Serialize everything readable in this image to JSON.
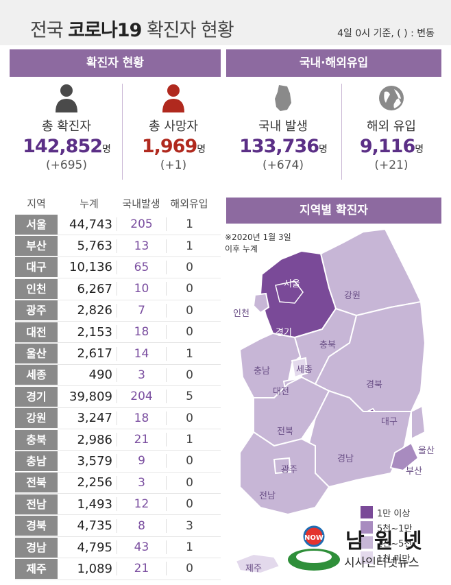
{
  "header": {
    "title_pre": "전국 ",
    "title_bold": "코로나19",
    "title_post": " 확진자 현황",
    "subtitle": "4일 0시 기준, ( ) : 변동"
  },
  "status_panel": {
    "title": "확진자 현황",
    "total": {
      "label": "총 확진자",
      "value": "142,852",
      "unit": "명",
      "change": "(+695)"
    },
    "deaths": {
      "label": "총 사망자",
      "value": "1,969",
      "unit": "명",
      "change": "(+1)"
    }
  },
  "origin_panel": {
    "title": "국내·해외유입",
    "domestic": {
      "label": "국내 발생",
      "value": "133,736",
      "unit": "명",
      "change": "(+674)"
    },
    "overseas": {
      "label": "해외 유입",
      "value": "9,116",
      "unit": "명",
      "change": "(+21)"
    }
  },
  "table": {
    "headers": [
      "지역",
      "누계",
      "국내발생",
      "해외유입"
    ],
    "rows": [
      {
        "region": "서울",
        "total": "44,743",
        "domestic": "205",
        "overseas": "1"
      },
      {
        "region": "부산",
        "total": "5,763",
        "domestic": "13",
        "overseas": "1"
      },
      {
        "region": "대구",
        "total": "10,136",
        "domestic": "65",
        "overseas": "0"
      },
      {
        "region": "인천",
        "total": "6,267",
        "domestic": "10",
        "overseas": "0"
      },
      {
        "region": "광주",
        "total": "2,826",
        "domestic": "7",
        "overseas": "0"
      },
      {
        "region": "대전",
        "total": "2,153",
        "domestic": "18",
        "overseas": "0"
      },
      {
        "region": "울산",
        "total": "2,617",
        "domestic": "14",
        "overseas": "1"
      },
      {
        "region": "세종",
        "total": "490",
        "domestic": "3",
        "overseas": "0"
      },
      {
        "region": "경기",
        "total": "39,809",
        "domestic": "204",
        "overseas": "5"
      },
      {
        "region": "강원",
        "total": "3,247",
        "domestic": "18",
        "overseas": "0"
      },
      {
        "region": "충북",
        "total": "2,986",
        "domestic": "21",
        "overseas": "1"
      },
      {
        "region": "충남",
        "total": "3,579",
        "domestic": "9",
        "overseas": "0"
      },
      {
        "region": "전북",
        "total": "2,256",
        "domestic": "3",
        "overseas": "0"
      },
      {
        "region": "전남",
        "total": "1,493",
        "domestic": "12",
        "overseas": "0"
      },
      {
        "region": "경북",
        "total": "4,735",
        "domestic": "8",
        "overseas": "3"
      },
      {
        "region": "경남",
        "total": "4,795",
        "domestic": "43",
        "overseas": "1"
      },
      {
        "region": "제주",
        "total": "1,089",
        "domestic": "21",
        "overseas": "0"
      }
    ]
  },
  "map": {
    "title": "지역별 확진자",
    "note_line1": "※2020년 1월 3일",
    "note_line2": "이후 누계",
    "labels": {
      "seoul": "서울",
      "gyeonggi": "경기",
      "incheon": "인천",
      "gangwon": "강원",
      "chungbuk": "충북",
      "sejong": "세종",
      "chungnam": "충남",
      "daejeon": "대전",
      "gyeongbuk": "경북",
      "daegu": "대구",
      "jeonbuk": "전북",
      "ulsan": "울산",
      "gwangju": "광주",
      "gyeongnam": "경남",
      "busan": "부산",
      "jeonnam": "전남",
      "jeju": "제주"
    },
    "legend": [
      {
        "label": "1만 이상",
        "color": "#7a4a98"
      },
      {
        "label": "5천~1만",
        "color": "#a88bbf"
      },
      {
        "label": "1천~5천",
        "color": "#c7b6d6"
      },
      {
        "label": "1천 미만",
        "color": "#e3d9ec"
      }
    ]
  },
  "watermark": {
    "brand": "남 원 넷",
    "sub": "시사인터넷뉴스"
  },
  "colors": {
    "accent": "#8d6aa0",
    "number": "#5b2f86",
    "death": "#b0291e"
  }
}
